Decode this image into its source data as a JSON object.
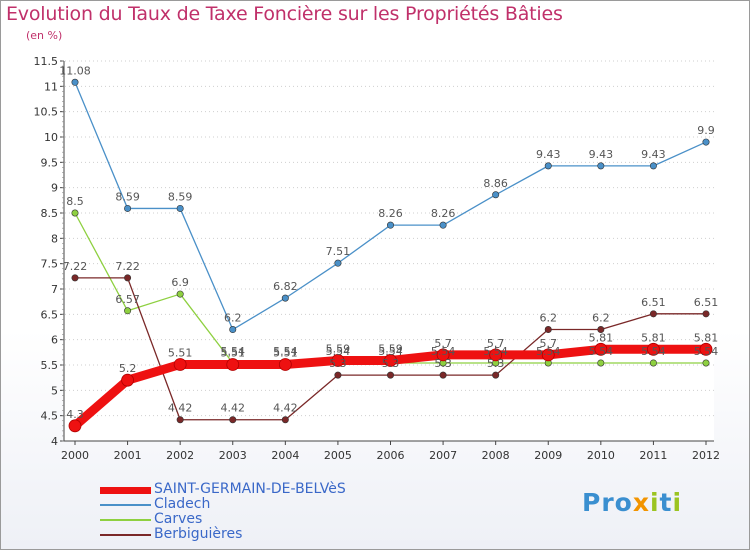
{
  "title": "Evolution du Taux de Taxe Foncière sur les Propriétés Bâties",
  "unit": "(en %)",
  "logo": {
    "text": "Proxiti"
  },
  "chart_data": {
    "type": "line",
    "title": "Evolution du Taux de Taxe Foncière sur les Propriétés Bâties",
    "ylabel": "(en %)",
    "ylim": [
      4,
      11.5
    ],
    "yticks": [
      "4",
      "4.5",
      "5",
      "5.5",
      "6",
      "6.5",
      "7",
      "7.5",
      "8",
      "8.5",
      "9",
      "9.5",
      "10",
      "10.5",
      "11",
      "11.5"
    ],
    "categories": [
      "2000",
      "2001",
      "2002",
      "2003",
      "2004",
      "2005",
      "2006",
      "2007",
      "2008",
      "2009",
      "2010",
      "2011",
      "2012"
    ],
    "series": [
      {
        "name": "Cladech",
        "color": "#4a90c8",
        "values": [
          11.08,
          8.59,
          8.59,
          6.2,
          6.82,
          7.51,
          8.26,
          8.26,
          8.86,
          9.43,
          9.43,
          9.43,
          9.9
        ],
        "labels": [
          "11.08",
          "8.59",
          "8.59",
          "6.2",
          "6.82",
          "7.51",
          "8.26",
          "8.26",
          "8.86",
          "9.43",
          "9.43",
          "9.43",
          "9.9"
        ]
      },
      {
        "name": "Carves",
        "color": "#8ed040",
        "values": [
          8.5,
          6.57,
          6.9,
          5.54,
          5.54,
          5.54,
          5.54,
          5.54,
          5.54,
          5.54,
          5.54,
          5.54,
          5.54
        ],
        "labels": [
          "8.5",
          "6.57",
          "6.9",
          "5.54",
          "5.54",
          "5.54",
          "5.54",
          "5.54",
          "5.54",
          "5.54",
          "5.54",
          "5.54",
          "5.54"
        ]
      },
      {
        "name": "Berbiguières",
        "color": "#7a2828",
        "values": [
          7.22,
          7.22,
          4.42,
          4.42,
          4.42,
          5.3,
          5.3,
          5.3,
          5.3,
          6.2,
          6.2,
          6.51,
          6.51
        ],
        "labels": [
          "7.22",
          "7.22",
          "4.42",
          "4.42",
          "4.42",
          "5.3",
          "5.3",
          "5.3",
          "5.3",
          "6.2",
          "6.2",
          "6.51",
          "6.51"
        ]
      },
      {
        "name": "SAINT-GERMAIN-DE-BELVèS",
        "color": "#ee1111",
        "values": [
          4.3,
          5.2,
          5.51,
          5.51,
          5.51,
          5.59,
          5.59,
          5.7,
          5.7,
          5.7,
          5.81,
          5.81,
          5.81
        ],
        "labels": [
          "4.3",
          "5.2",
          "5.51",
          "5.51",
          "5.51",
          "5.59",
          "5.59",
          "5.7",
          "5.7",
          "5.7",
          "5.81",
          "5.81",
          "5.81"
        ]
      }
    ],
    "legend": [
      "SAINT-GERMAIN-DE-BELVèS",
      "Cladech",
      "Carves",
      "Berbiguières"
    ]
  }
}
